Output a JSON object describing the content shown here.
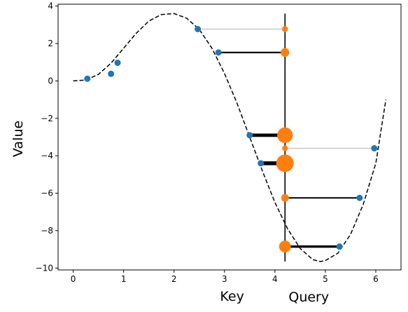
{
  "chart_data": {
    "type": "scatter",
    "xlabel": "Key",
    "ylabel": "Value",
    "query_label": "Query",
    "xlim": [
      -0.3,
      6.5
    ],
    "ylim": [
      -10.1,
      4.1
    ],
    "x_ticks": [
      0,
      1,
      2,
      3,
      4,
      5,
      6
    ],
    "y_ticks": [
      -10,
      -8,
      -6,
      -4,
      -2,
      0,
      2,
      4
    ],
    "grid": false,
    "curve": {
      "style": "dashed",
      "color": "#000000",
      "x_range": [
        0,
        6.2
      ],
      "formula": "x * sin(x) * 2.2 - approximate fit",
      "points": [
        [
          0.0,
          0.0
        ],
        [
          0.25,
          0.05
        ],
        [
          0.5,
          0.35
        ],
        [
          0.75,
          0.95
        ],
        [
          1.0,
          1.75
        ],
        [
          1.25,
          2.55
        ],
        [
          1.5,
          3.2
        ],
        [
          1.75,
          3.55
        ],
        [
          2.0,
          3.6
        ],
        [
          2.25,
          3.35
        ],
        [
          2.5,
          2.75
        ],
        [
          2.75,
          1.75
        ],
        [
          3.0,
          0.4
        ],
        [
          3.25,
          -1.2
        ],
        [
          3.5,
          -3.0
        ],
        [
          3.75,
          -4.8
        ],
        [
          4.0,
          -6.5
        ],
        [
          4.25,
          -7.9
        ],
        [
          4.5,
          -8.95
        ],
        [
          4.75,
          -9.55
        ],
        [
          4.9,
          -9.65
        ],
        [
          5.0,
          -9.6
        ],
        [
          5.25,
          -9.2
        ],
        [
          5.5,
          -8.2
        ],
        [
          5.75,
          -6.6
        ],
        [
          6.0,
          -4.4
        ],
        [
          6.2,
          -1.0
        ]
      ]
    },
    "keys": {
      "color": "#1f77b4",
      "points": [
        [
          0.28,
          0.12
        ],
        [
          0.75,
          0.38
        ],
        [
          0.88,
          0.97
        ],
        [
          2.47,
          2.77
        ],
        [
          2.88,
          1.52
        ],
        [
          3.5,
          -2.9
        ],
        [
          3.72,
          -4.4
        ],
        [
          5.28,
          -8.85
        ],
        [
          5.68,
          -6.25
        ],
        [
          5.97,
          -3.6
        ]
      ]
    },
    "query": {
      "x": 4.2,
      "line_color": "#000000",
      "point_color": "#ff7f0e",
      "points": [
        {
          "y": 2.77,
          "weight": 0.08,
          "key_index": 3
        },
        {
          "y": 1.52,
          "weight": 0.3,
          "key_index": 4
        },
        {
          "y": -2.9,
          "weight": 0.85,
          "key_index": 5
        },
        {
          "y": -3.6,
          "weight": 0.06,
          "key_index": 9
        },
        {
          "y": -4.4,
          "weight": 1.0,
          "key_index": 6
        },
        {
          "y": -6.25,
          "weight": 0.22,
          "key_index": 8
        },
        {
          "y": -8.85,
          "weight": 0.55,
          "key_index": 7
        }
      ]
    }
  }
}
